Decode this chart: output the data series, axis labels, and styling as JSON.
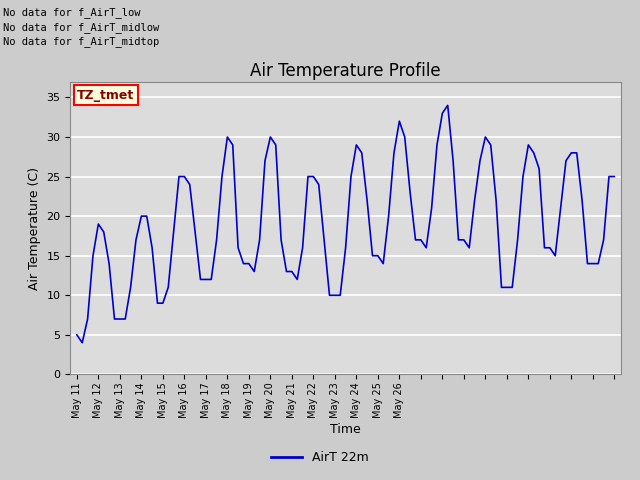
{
  "title": "Air Temperature Profile",
  "xlabel": "Time",
  "ylabel": "Air Temperature (C)",
  "legend_label": "AirT 22m",
  "text_annotations": [
    "No data for f_AirT_low",
    "No data for f_AirT_midlow",
    "No data for f_AirT_midtop"
  ],
  "legend_box_label": "TZ_tmet",
  "ylim": [
    0,
    37
  ],
  "yticks": [
    0,
    5,
    10,
    15,
    20,
    25,
    30,
    35
  ],
  "line_color": "#0000CC",
  "fig_bg_color": "#D8D8D8",
  "ax_bg_color": "#E0E0E0",
  "grid_color": "#FFFFFF",
  "time_data": [
    0,
    0.25,
    0.5,
    0.75,
    1,
    1.25,
    1.5,
    1.75,
    2,
    2.25,
    2.5,
    2.75,
    3,
    3.25,
    3.5,
    3.75,
    4,
    4.25,
    4.5,
    4.75,
    5,
    5.25,
    5.5,
    5.75,
    6,
    6.25,
    6.5,
    6.75,
    7,
    7.25,
    7.5,
    7.75,
    8,
    8.25,
    8.5,
    8.75,
    9,
    9.25,
    9.5,
    9.75,
    10,
    10.25,
    10.5,
    10.75,
    11,
    11.25,
    11.5,
    11.75,
    12,
    12.25,
    12.5,
    12.75,
    13,
    13.25,
    13.5,
    13.75,
    14,
    14.25,
    14.5,
    14.75,
    15,
    15.25,
    15.5,
    15.75,
    16,
    16.25,
    16.5,
    16.75,
    17,
    17.25,
    17.5,
    17.75,
    18,
    18.25,
    18.5,
    18.75,
    19,
    19.25,
    19.5,
    19.75,
    20,
    20.25,
    20.5,
    20.75,
    21,
    21.25,
    21.5,
    21.75,
    22,
    22.25,
    22.5,
    22.75,
    23,
    23.25,
    23.5,
    23.75,
    24,
    24.25,
    24.5,
    24.75,
    25
  ],
  "temp_data": [
    5,
    4,
    7,
    15,
    19,
    18,
    14,
    7,
    7,
    7,
    11,
    17,
    20,
    20,
    16,
    9,
    9,
    11,
    18,
    25,
    25,
    24,
    18,
    12,
    12,
    12,
    17,
    25,
    30,
    29,
    16,
    14,
    14,
    13,
    17,
    27,
    30,
    29,
    17,
    13,
    13,
    12,
    16,
    25,
    25,
    24,
    17,
    10,
    10,
    10,
    16,
    25,
    29,
    28,
    22,
    15,
    15,
    14,
    20,
    28,
    32,
    30,
    23,
    17,
    17,
    16,
    21,
    29,
    33,
    34,
    27,
    17,
    17,
    16,
    22,
    27,
    30,
    29,
    22,
    11,
    11,
    11,
    17,
    25,
    29,
    28,
    26,
    16,
    16,
    15,
    21,
    27,
    28,
    28,
    22,
    14,
    14,
    14,
    17,
    25,
    25
  ],
  "xtick_labels": [
    "May 11",
    "May 12",
    "May 13",
    "May 14",
    "May 15",
    "May 16",
    "May 17",
    "May 18",
    "May 19",
    "May 20",
    "May 21",
    "May 22",
    "May 23",
    "May 24",
    "May 25",
    "May 26"
  ]
}
